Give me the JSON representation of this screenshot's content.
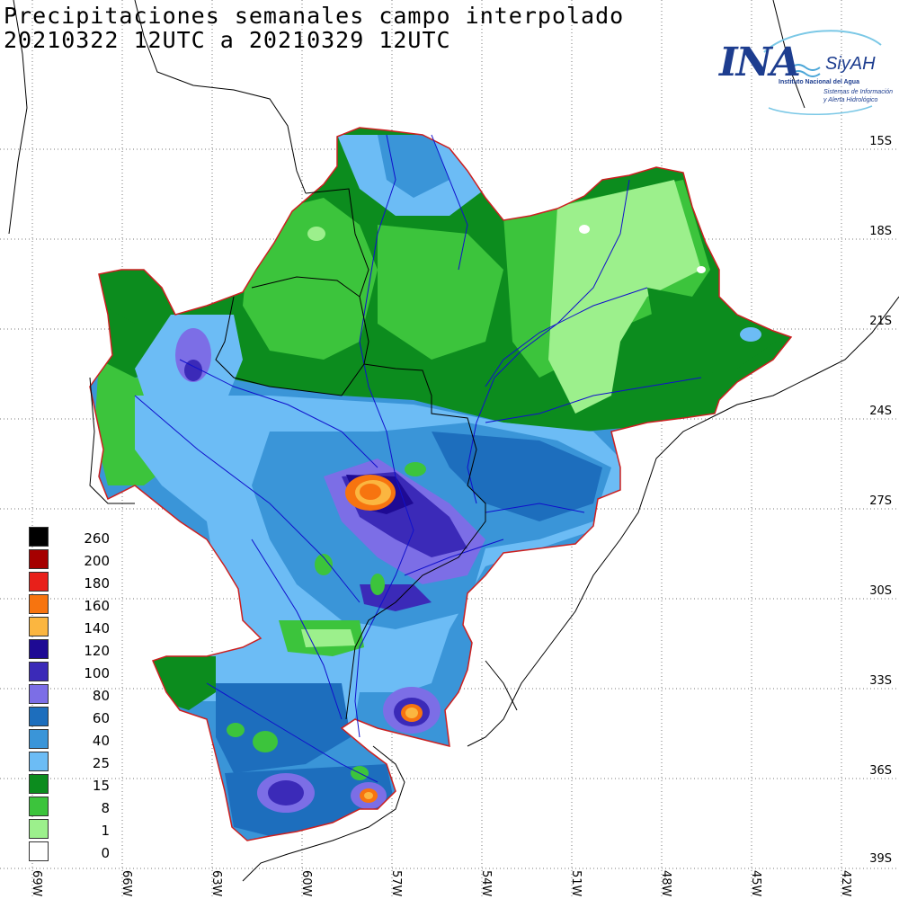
{
  "title": {
    "line1": "Precipitaciones semanales campo interpolado",
    "line2": "20210322 12UTC a 20210329 12UTC"
  },
  "logo": {
    "ina": "INA",
    "siyah": "SiyAH",
    "org": "Instituto Nacional del Agua",
    "sub1": "Sistemas de Información",
    "sub2": "y Alerta Hidrológico"
  },
  "lat_labels": [
    "15S",
    "18S",
    "21S",
    "24S",
    "27S",
    "30S",
    "33S",
    "36S",
    "39S"
  ],
  "lon_labels": [
    "69W",
    "66W",
    "63W",
    "60W",
    "57W",
    "54W",
    "51W",
    "48W",
    "45W",
    "42W"
  ],
  "legend": [
    {
      "label": "260",
      "color": "#000000"
    },
    {
      "label": "200",
      "color": "#a50000"
    },
    {
      "label": "180",
      "color": "#e8201a"
    },
    {
      "label": "160",
      "color": "#f7740f"
    },
    {
      "label": "140",
      "color": "#fbb640"
    },
    {
      "label": "120",
      "color": "#1e0a94"
    },
    {
      "label": "100",
      "color": "#3b2ab8"
    },
    {
      "label": "80",
      "color": "#7c6ee6"
    },
    {
      "label": "60",
      "color": "#1d6ebd"
    },
    {
      "label": "40",
      "color": "#3a95d8"
    },
    {
      "label": "25",
      "color": "#6cbcf5"
    },
    {
      "label": "15",
      "color": "#0c8c1e"
    },
    {
      "label": "8",
      "color": "#3cc43c"
    },
    {
      "label": "1",
      "color": "#9cf08c"
    },
    {
      "label": "0",
      "color": "#ffffff"
    }
  ],
  "colors": {
    "basin_outline": "#cc2020",
    "rivers": "#1010cc",
    "borders": "#000000",
    "graticule": "#7a7a7a"
  }
}
